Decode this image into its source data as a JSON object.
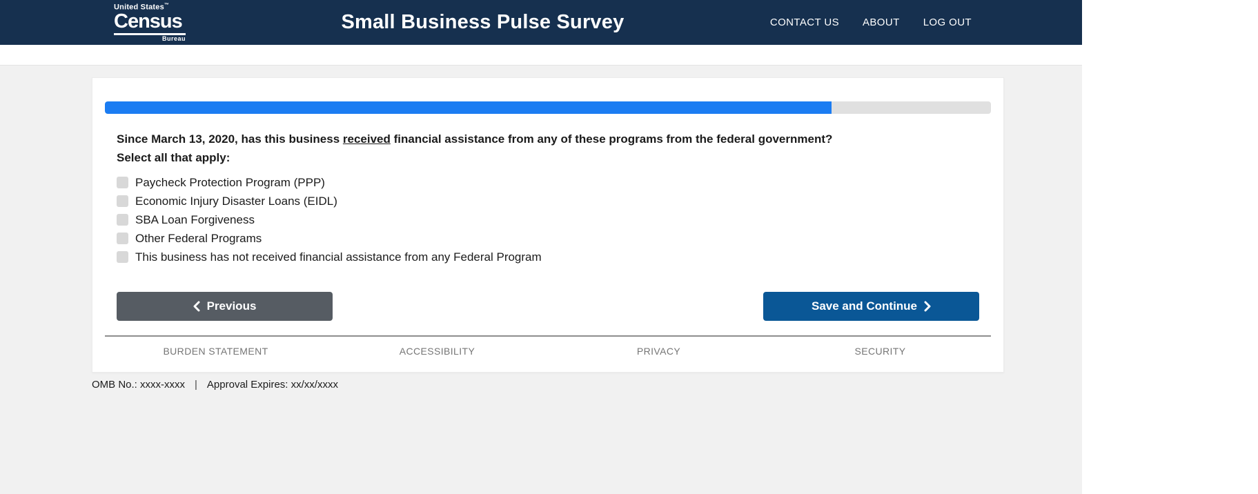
{
  "header": {
    "logo": {
      "top": "United States",
      "tm": "™",
      "main": "Census",
      "sub": "Bureau"
    },
    "title": "Small Business Pulse Survey",
    "nav": [
      {
        "label": "CONTACT US"
      },
      {
        "label": "ABOUT"
      },
      {
        "label": "LOG OUT"
      }
    ]
  },
  "survey": {
    "progress": {
      "percent": 82,
      "fill_color": "#1b7cf2",
      "track_color": "#e0e0e0"
    },
    "question": {
      "part1": "Since March 13, 2020, has this business ",
      "underlined": "received",
      "part2": " financial assistance from any of these programs from the federal government?"
    },
    "instruction": "Select all that apply:",
    "options": [
      {
        "label": "Paycheck Protection Program (PPP)",
        "checked": false
      },
      {
        "label": "Economic Injury Disaster Loans (EIDL)",
        "checked": false
      },
      {
        "label": "SBA Loan Forgiveness",
        "checked": false
      },
      {
        "label": "Other Federal Programs",
        "checked": false
      },
      {
        "label": "This business has not received financial assistance from any Federal Program",
        "checked": false
      }
    ],
    "buttons": {
      "previous": "Previous",
      "save": "Save and Continue"
    }
  },
  "footer": {
    "links": [
      {
        "label": "BURDEN STATEMENT"
      },
      {
        "label": "ACCESSIBILITY"
      },
      {
        "label": "PRIVACY"
      },
      {
        "label": "SECURITY"
      }
    ],
    "omb": "OMB No.: xxxx-xxxx",
    "separator": "|",
    "approval": "Approval Expires: xx/xx/xxxx"
  },
  "colors": {
    "header_navy": "#16304f",
    "progress_blue": "#1b7cf2",
    "previous_gray": "#565c63",
    "save_blue": "#0a5796",
    "page_gray": "#f1f1f1"
  }
}
